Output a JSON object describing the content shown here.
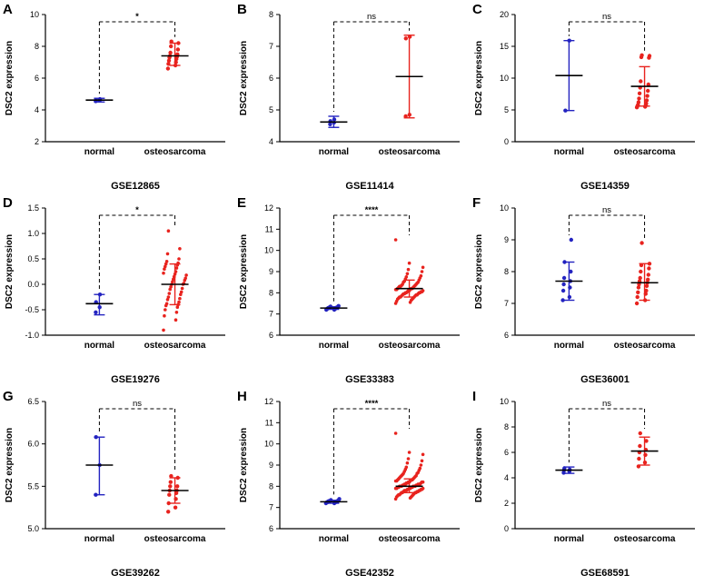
{
  "figure": {
    "ylabel_common": "DSC2 expression",
    "categories": [
      "normal",
      "osteosarcoma"
    ],
    "colors": {
      "normal": "#2323c0",
      "osteosarcoma": "#e8231e",
      "mean_line": "#000000"
    }
  },
  "chart_data": [
    {
      "type": "scatter",
      "letter": "A",
      "title": "GSE12865",
      "sig": "*",
      "ylabel": "DSC2 expression",
      "ylim": [
        2,
        10
      ],
      "tick_values": [
        2,
        4,
        6,
        8,
        10
      ],
      "tick_labels": [
        "2",
        "4",
        "6",
        "8",
        "10"
      ],
      "groups": [
        {
          "name": "normal",
          "color": "#2323c0",
          "points": [
            4.55,
            4.6,
            4.62,
            4.68
          ],
          "mean": 4.62,
          "err": [
            4.5,
            4.73
          ]
        },
        {
          "name": "osteosarcoma",
          "color": "#e8231e",
          "points": [
            6.6,
            6.8,
            6.9,
            7.0,
            7.1,
            7.2,
            7.3,
            7.35,
            7.4,
            7.5,
            7.6,
            7.8,
            8.0,
            8.2,
            8.3
          ],
          "mean": 7.4,
          "err": [
            6.8,
            8.2
          ]
        }
      ]
    },
    {
      "type": "scatter",
      "letter": "B",
      "title": "GSE11414",
      "sig": "ns",
      "ylabel": "DSC2 expression",
      "ylim": [
        4,
        8
      ],
      "tick_values": [
        4,
        5,
        6,
        7,
        8
      ],
      "tick_labels": [
        "4",
        "5",
        "6",
        "7",
        "8"
      ],
      "groups": [
        {
          "name": "normal",
          "color": "#2323c0",
          "points": [
            4.55,
            4.6,
            4.65,
            4.7
          ],
          "mean": 4.62,
          "err": [
            4.45,
            4.8
          ]
        },
        {
          "name": "osteosarcoma",
          "color": "#e8231e",
          "points": [
            4.8,
            4.85,
            7.25,
            7.3
          ],
          "mean": 6.05,
          "err": [
            4.75,
            7.35
          ]
        }
      ]
    },
    {
      "type": "scatter",
      "letter": "C",
      "title": "GSE14359",
      "sig": "ns",
      "ylabel": "DSC2 expression",
      "ylim": [
        0,
        20
      ],
      "tick_values": [
        0,
        5,
        10,
        15,
        20
      ],
      "tick_labels": [
        "0",
        "5",
        "10",
        "15",
        "20"
      ],
      "groups": [
        {
          "name": "normal",
          "color": "#2323c0",
          "points": [
            4.9,
            15.9
          ],
          "mean": 10.4,
          "err": [
            4.9,
            15.9
          ]
        },
        {
          "name": "osteosarcoma",
          "color": "#e8231e",
          "points": [
            5.4,
            5.5,
            5.6,
            5.7,
            5.8,
            6.0,
            6.2,
            6.5,
            6.8,
            7.2,
            7.6,
            8.0,
            8.5,
            9.0,
            9.5,
            13.2,
            13.3,
            13.5,
            13.6
          ],
          "mean": 8.7,
          "err": [
            5.6,
            11.8
          ]
        }
      ]
    },
    {
      "type": "scatter",
      "letter": "D",
      "title": "GSE19276",
      "sig": "*",
      "ylabel": "DSC2 expression",
      "ylim": [
        -1.0,
        1.5
      ],
      "tick_values": [
        -1.0,
        -0.5,
        0.0,
        0.5,
        1.0,
        1.5
      ],
      "tick_labels": [
        "-1.0",
        "-0.5",
        "0.0",
        "0.5",
        "1.0",
        "1.5"
      ],
      "groups": [
        {
          "name": "normal",
          "color": "#2323c0",
          "points": [
            -0.55,
            -0.45,
            -0.35,
            -0.2
          ],
          "mean": -0.38,
          "err": [
            -0.6,
            -0.2
          ]
        },
        {
          "name": "osteosarcoma",
          "color": "#e8231e",
          "points": [
            -0.9,
            -0.7,
            -0.62,
            -0.55,
            -0.5,
            -0.45,
            -0.42,
            -0.4,
            -0.38,
            -0.35,
            -0.3,
            -0.28,
            -0.25,
            -0.2,
            -0.18,
            -0.15,
            -0.1,
            -0.08,
            -0.05,
            0.0,
            0.0,
            0.02,
            0.05,
            0.08,
            0.1,
            0.12,
            0.15,
            0.18,
            0.2,
            0.22,
            0.25,
            0.3,
            0.32,
            0.35,
            0.38,
            0.4,
            0.42,
            0.45,
            0.5,
            0.6,
            0.7,
            1.05
          ],
          "mean": 0.0,
          "err": [
            -0.4,
            0.4
          ]
        }
      ]
    },
    {
      "type": "scatter",
      "letter": "E",
      "title": "GSE33383",
      "sig": "****",
      "ylabel": "DSC2 expression",
      "ylim": [
        6,
        12
      ],
      "tick_values": [
        6,
        7,
        8,
        9,
        10,
        11,
        12
      ],
      "tick_labels": [
        "6",
        "7",
        "8",
        "9",
        "10",
        "11",
        "12"
      ],
      "groups": [
        {
          "name": "normal",
          "color": "#2323c0",
          "points": [
            7.2,
            7.2,
            7.22,
            7.25,
            7.25,
            7.25,
            7.27,
            7.28,
            7.28,
            7.3,
            7.3,
            7.3,
            7.3,
            7.32,
            7.33,
            7.35,
            7.35,
            7.38
          ],
          "mean": 7.28,
          "err": [
            7.22,
            7.34
          ]
        },
        {
          "name": "osteosarcoma",
          "color": "#e8231e",
          "points": [
            7.5,
            7.55,
            7.6,
            7.65,
            7.7,
            7.7,
            7.75,
            7.75,
            7.8,
            7.8,
            7.8,
            7.85,
            7.85,
            7.9,
            7.9,
            7.9,
            7.95,
            7.95,
            7.95,
            8.0,
            8.0,
            8.0,
            8.0,
            8.05,
            8.05,
            8.05,
            8.1,
            8.1,
            8.1,
            8.15,
            8.15,
            8.15,
            8.2,
            8.2,
            8.2,
            8.25,
            8.25,
            8.3,
            8.3,
            8.3,
            8.35,
            8.35,
            8.4,
            8.4,
            8.45,
            8.5,
            8.5,
            8.55,
            8.6,
            8.65,
            8.7,
            8.75,
            8.8,
            8.9,
            9.0,
            9.1,
            9.2,
            9.4,
            10.5
          ],
          "mean": 8.2,
          "err": [
            7.8,
            8.6
          ]
        }
      ]
    },
    {
      "type": "scatter",
      "letter": "F",
      "title": "GSE36001",
      "sig": "ns",
      "ylabel": "DSC2 expression",
      "ylim": [
        6,
        10
      ],
      "tick_values": [
        6,
        7,
        8,
        9,
        10
      ],
      "tick_labels": [
        "6",
        "7",
        "8",
        "9",
        "10"
      ],
      "groups": [
        {
          "name": "normal",
          "color": "#2323c0",
          "points": [
            7.1,
            7.2,
            7.4,
            7.5,
            7.6,
            7.7,
            7.8,
            8.0,
            8.3,
            9.0
          ],
          "mean": 7.7,
          "err": [
            7.1,
            8.3
          ]
        },
        {
          "name": "osteosarcoma",
          "color": "#e8231e",
          "points": [
            7.0,
            7.1,
            7.2,
            7.3,
            7.35,
            7.4,
            7.5,
            7.55,
            7.6,
            7.65,
            7.7,
            7.75,
            7.8,
            7.9,
            8.0,
            8.1,
            8.2,
            8.25,
            8.9
          ],
          "mean": 7.65,
          "err": [
            7.1,
            8.25
          ]
        }
      ]
    },
    {
      "type": "scatter",
      "letter": "G",
      "title": "GSE39262",
      "sig": "ns",
      "ylabel": "DSC2 expression",
      "ylim": [
        5.0,
        6.5
      ],
      "tick_values": [
        5.0,
        5.5,
        6.0,
        6.5
      ],
      "tick_labels": [
        "5.0",
        "5.5",
        "6.0",
        "6.5"
      ],
      "groups": [
        {
          "name": "normal",
          "color": "#2323c0",
          "points": [
            5.4,
            5.75,
            6.08
          ],
          "mean": 5.75,
          "err": [
            5.4,
            6.08
          ]
        },
        {
          "name": "osteosarcoma",
          "color": "#e8231e",
          "points": [
            5.2,
            5.25,
            5.3,
            5.35,
            5.4,
            5.42,
            5.45,
            5.45,
            5.5,
            5.5,
            5.55,
            5.6,
            5.62
          ],
          "mean": 5.45,
          "err": [
            5.3,
            5.6
          ]
        }
      ]
    },
    {
      "type": "scatter",
      "letter": "H",
      "title": "GSE42352",
      "sig": "****",
      "ylabel": "DSC2 expression",
      "ylim": [
        6,
        12
      ],
      "tick_values": [
        6,
        7,
        8,
        9,
        10,
        11,
        12
      ],
      "tick_labels": [
        "6",
        "7",
        "8",
        "9",
        "10",
        "11",
        "12"
      ],
      "groups": [
        {
          "name": "normal",
          "color": "#2323c0",
          "points": [
            7.2,
            7.2,
            7.22,
            7.22,
            7.25,
            7.25,
            7.25,
            7.27,
            7.28,
            7.28,
            7.3,
            7.3,
            7.3,
            7.3,
            7.3,
            7.32,
            7.33,
            7.35,
            7.35,
            7.4
          ],
          "mean": 7.27,
          "err": [
            7.2,
            7.34
          ]
        },
        {
          "name": "osteosarcoma",
          "color": "#e8231e",
          "points": [
            7.4,
            7.45,
            7.5,
            7.5,
            7.55,
            7.55,
            7.6,
            7.6,
            7.6,
            7.65,
            7.65,
            7.7,
            7.7,
            7.7,
            7.7,
            7.75,
            7.75,
            7.75,
            7.8,
            7.8,
            7.8,
            7.8,
            7.8,
            7.85,
            7.85,
            7.85,
            7.85,
            7.9,
            7.9,
            7.9,
            7.9,
            7.9,
            7.95,
            7.95,
            7.95,
            7.95,
            8.0,
            8.0,
            8.0,
            8.0,
            8.0,
            8.0,
            8.05,
            8.05,
            8.05,
            8.05,
            8.1,
            8.1,
            8.1,
            8.1,
            8.1,
            8.15,
            8.15,
            8.15,
            8.2,
            8.2,
            8.2,
            8.2,
            8.25,
            8.25,
            8.25,
            8.3,
            8.3,
            8.3,
            8.35,
            8.35,
            8.4,
            8.4,
            8.45,
            8.45,
            8.5,
            8.5,
            8.55,
            8.6,
            8.6,
            8.65,
            8.7,
            8.75,
            8.8,
            8.85,
            8.9,
            9.0,
            9.1,
            9.2,
            9.3,
            9.5,
            9.6,
            10.5
          ],
          "mean": 8.0,
          "err": [
            7.7,
            8.35
          ]
        }
      ]
    },
    {
      "type": "scatter",
      "letter": "I",
      "title": "GSE68591",
      "sig": "ns",
      "ylabel": "DSC2 expression",
      "ylim": [
        0,
        10
      ],
      "tick_values": [
        0,
        2,
        4,
        6,
        8,
        10
      ],
      "tick_labels": [
        "0",
        "2",
        "4",
        "6",
        "8",
        "10"
      ],
      "groups": [
        {
          "name": "normal",
          "color": "#2323c0",
          "points": [
            4.4,
            4.5,
            4.6,
            4.65,
            4.75
          ],
          "mean": 4.6,
          "err": [
            4.35,
            4.85
          ]
        },
        {
          "name": "osteosarcoma",
          "color": "#e8231e",
          "points": [
            4.9,
            5.2,
            5.5,
            5.8,
            6.0,
            6.2,
            6.5,
            6.9,
            7.5
          ],
          "mean": 6.1,
          "err": [
            5.0,
            7.2
          ]
        }
      ]
    }
  ]
}
